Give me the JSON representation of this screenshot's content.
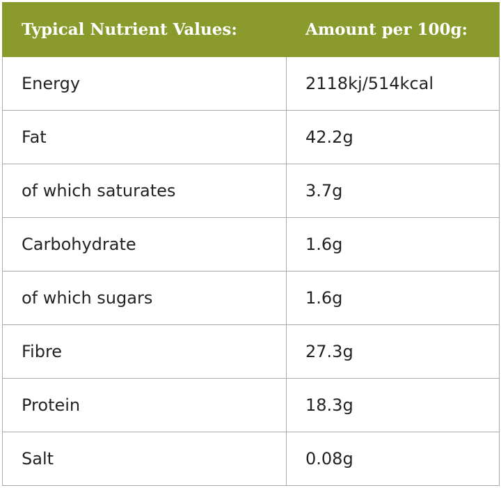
{
  "table": {
    "header": [
      "Typical Nutrient Values:",
      "Amount per 100g:"
    ],
    "rows": [
      [
        "Energy",
        "2118kj/514kcal"
      ],
      [
        "Fat",
        "42.2g"
      ],
      [
        "of which saturates",
        "3.7g"
      ],
      [
        "Carbohydrate",
        "1.6g"
      ],
      [
        "of which sugars",
        "1.6g"
      ],
      [
        "Fibre",
        "27.3g"
      ],
      [
        "Protein",
        "18.3g"
      ],
      [
        "Salt",
        "0.08g"
      ]
    ]
  }
}
